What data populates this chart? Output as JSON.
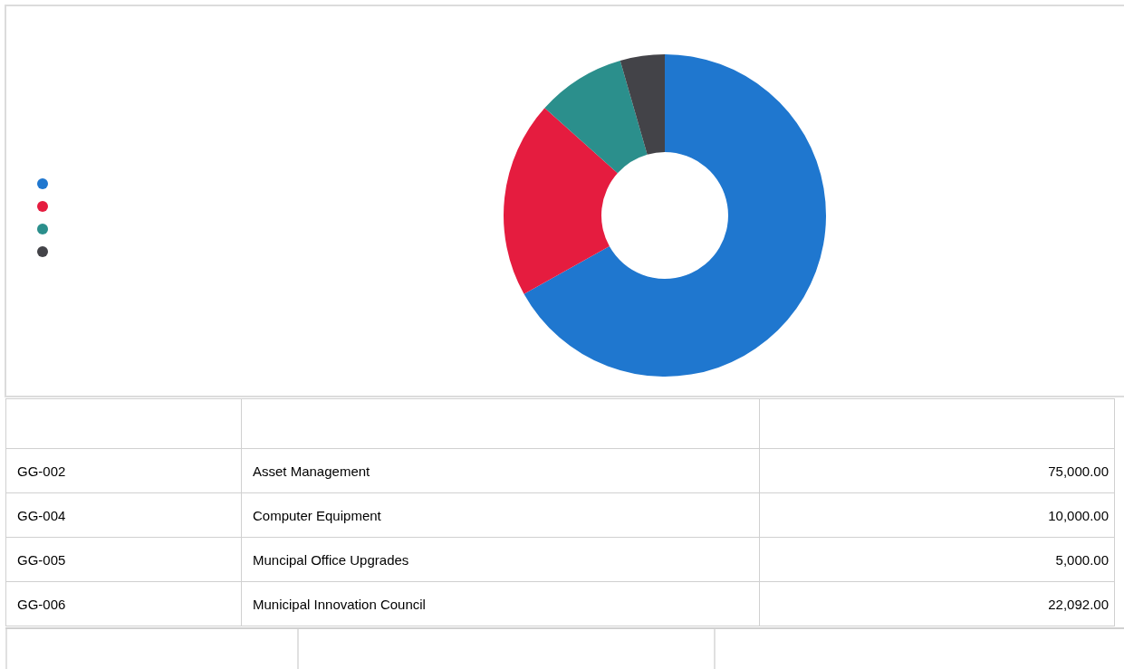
{
  "chart_data": [
    {
      "type": "donut",
      "categories": [
        null,
        null,
        null,
        null
      ],
      "values": [
        66.91,
        19.71,
        8.92,
        4.46
      ],
      "colors": [
        "#1f77cf",
        "#e51c3f",
        "#2b8f8c",
        "#434348"
      ]
    },
    {
      "type": "other",
      "categories": [
        "Asset Management",
        "Computer Equipment",
        "Muncipal Office Upgrades",
        "Municipal Innovation Council"
      ],
      "annotations": [
        "GG-002",
        "GG-004",
        "GG-005",
        "GG-006"
      ],
      "value_labels": [
        "75,000.00",
        "10,000.00",
        "5,000.00",
        "22,092.00"
      ]
    }
  ]
}
